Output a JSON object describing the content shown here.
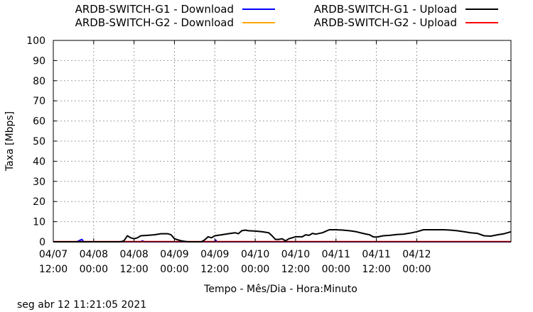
{
  "chart_data": {
    "type": "line",
    "ylabel": "Taxa [Mbps]",
    "xlabel": "Tempo - Mês/Dia - Hora:Minuto",
    "ylim": [
      0,
      100
    ],
    "yticks": [
      0,
      10,
      20,
      30,
      40,
      50,
      60,
      70,
      80,
      90,
      100
    ],
    "xlim": [
      0,
      136
    ],
    "x_unit": "hours since 04/07 12:00",
    "xticks": [
      {
        "hour": 0,
        "line1": "04/07",
        "line2": "12:00"
      },
      {
        "hour": 12,
        "line1": "04/08",
        "line2": "00:00"
      },
      {
        "hour": 24,
        "line1": "04/08",
        "line2": "12:00"
      },
      {
        "hour": 36,
        "line1": "04/09",
        "line2": "00:00"
      },
      {
        "hour": 48,
        "line1": "04/09",
        "line2": "12:00"
      },
      {
        "hour": 60,
        "line1": "04/10",
        "line2": "00:00"
      },
      {
        "hour": 72,
        "line1": "04/10",
        "line2": "12:00"
      },
      {
        "hour": 84,
        "line1": "04/11",
        "line2": "00:00"
      },
      {
        "hour": 96,
        "line1": "04/11",
        "line2": "12:00"
      },
      {
        "hour": 108,
        "line1": "04/12",
        "line2": "00:00"
      }
    ],
    "grid": true,
    "legend_position": "top",
    "series": [
      {
        "name": "ARDB-SWITCH-G1 - Download",
        "color": "#0000ff",
        "x": [
          0,
          7,
          8,
          8.5,
          9,
          26,
          26.5,
          27,
          48,
          48.3,
          48.6,
          136
        ],
        "y": [
          0,
          0,
          0.8,
          1.2,
          0,
          0,
          0.5,
          0,
          0,
          0.8,
          0,
          0
        ]
      },
      {
        "name": "ARDB-SWITCH-G2 - Download",
        "color": "#ffa500",
        "x": [
          0,
          136
        ],
        "y": [
          0,
          0
        ]
      },
      {
        "name": "ARDB-SWITCH-G1 - Upload",
        "color": "#000000",
        "x": [
          0,
          8,
          14,
          20,
          21,
          22,
          23,
          24,
          25,
          26,
          28,
          30,
          32,
          34,
          35,
          36,
          37,
          38,
          40,
          44,
          45,
          46,
          47,
          48,
          50,
          52,
          54,
          55,
          56,
          57,
          58,
          60,
          62,
          64,
          65,
          66,
          67,
          68,
          69,
          70,
          72,
          74,
          75,
          76,
          77,
          78,
          80,
          82,
          84,
          86,
          88,
          90,
          92,
          94,
          95,
          96,
          98,
          100,
          102,
          104,
          106,
          108,
          110,
          112,
          114,
          116,
          118,
          120,
          122,
          124,
          126,
          128,
          130,
          132,
          134,
          136
        ],
        "y": [
          0,
          0,
          0,
          0,
          0.5,
          3,
          2,
          1.5,
          2,
          3,
          3.2,
          3.5,
          4,
          4,
          3.5,
          1.5,
          1,
          0.5,
          0,
          0,
          1,
          2.5,
          2,
          3,
          3.5,
          4,
          4.5,
          4,
          5.5,
          5.8,
          5.5,
          5.3,
          5,
          4.5,
          3,
          1.2,
          1.2,
          1.5,
          0.5,
          1.5,
          2.5,
          2.5,
          3.5,
          3.2,
          4.2,
          3.8,
          4.5,
          6,
          6,
          5.8,
          5.5,
          5,
          4.2,
          3.5,
          2.5,
          2.3,
          3,
          3.2,
          3.6,
          3.8,
          4.3,
          5,
          6,
          6,
          6,
          6,
          5.8,
          5.5,
          5,
          4.5,
          4.2,
          3,
          2.8,
          3.5,
          4,
          5
        ]
      },
      {
        "name": "ARDB-SWITCH-G2 - Upload",
        "color": "#ff0000",
        "x": [
          0,
          136
        ],
        "y": [
          0.1,
          0.1
        ]
      }
    ]
  },
  "footer": {
    "timestamp": "seg abr 12 11:21:05 2021"
  }
}
